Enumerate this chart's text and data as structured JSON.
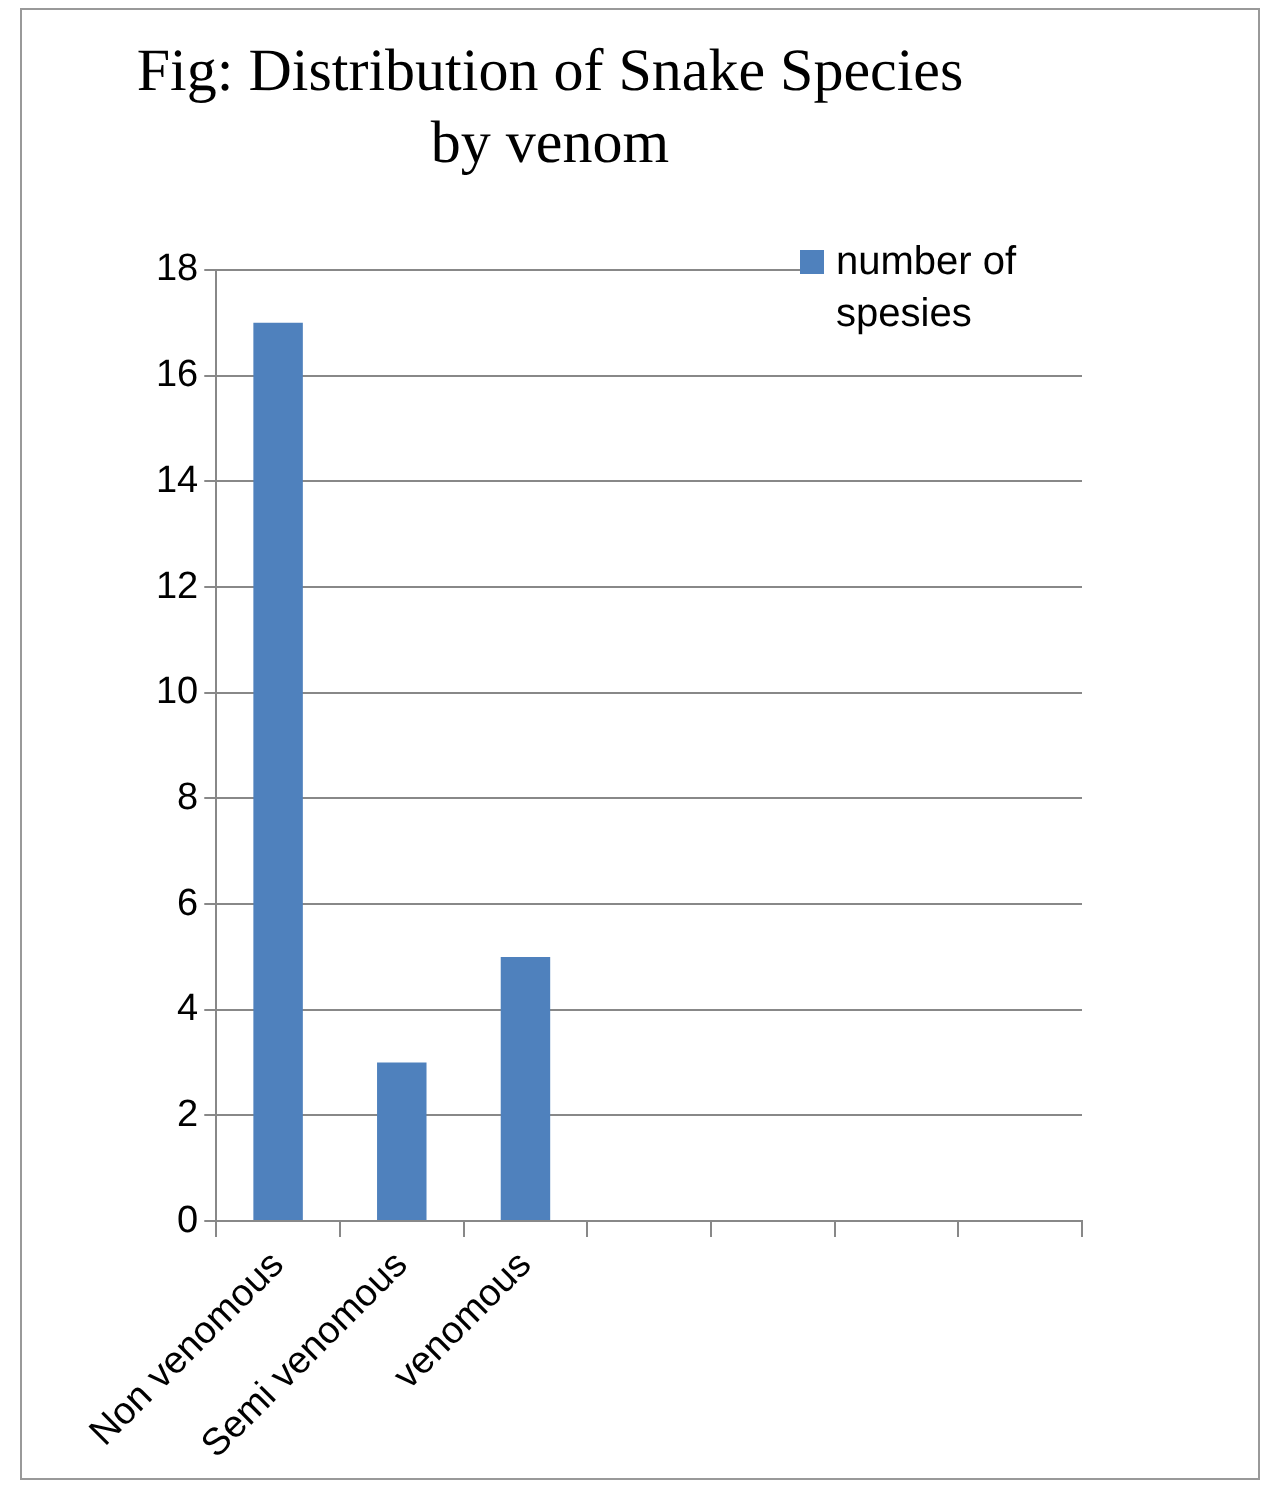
{
  "chart_data": {
    "type": "bar",
    "title": "Fig: Distribution of Snake Species by venom",
    "categories": [
      "Non venomous",
      "Semi venomous",
      "venomous",
      null,
      null,
      null,
      null
    ],
    "series": [
      {
        "name": "number of spesies",
        "color": "#4f81bd",
        "values": [
          17,
          3,
          5,
          null,
          null,
          null,
          null
        ]
      }
    ],
    "ylim": [
      0,
      18
    ],
    "yticks": [
      0,
      2,
      4,
      6,
      8,
      10,
      12,
      14,
      16,
      18
    ],
    "grid": "y",
    "legend": "top right"
  }
}
